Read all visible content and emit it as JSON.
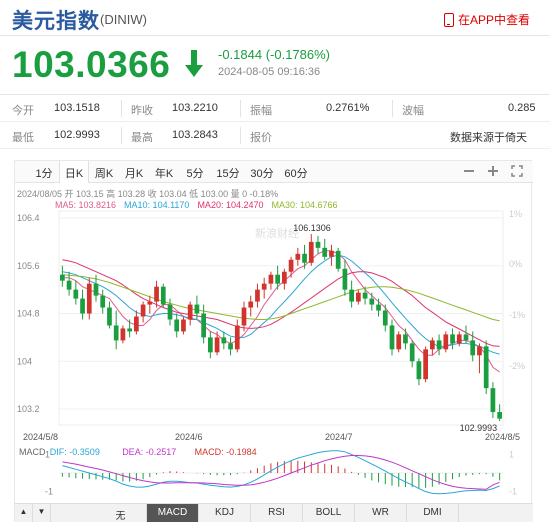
{
  "header": {
    "title": "美元指数",
    "code": "(DINIW)",
    "app_link": "在APP中查看"
  },
  "quote": {
    "price": "103.0366",
    "change": "-0.1844 (-0.1786%)",
    "timestamp": "2024-08-05 09:16:36"
  },
  "stats": {
    "row1": [
      {
        "label": "今开",
        "value": "103.1518"
      },
      {
        "label": "昨收",
        "value": "103.2210"
      },
      {
        "label": "振幅",
        "value": "0.2761%"
      },
      {
        "label": "波幅",
        "value": "0.285"
      }
    ],
    "row2": [
      {
        "label": "最低",
        "value": "102.9993"
      },
      {
        "label": "最高",
        "value": "103.2843"
      },
      {
        "label": "报价",
        "value": "数据来源于倚天"
      }
    ]
  },
  "tabs": [
    "1分",
    "日K",
    "周K",
    "月K",
    "年K",
    "5分",
    "15分",
    "30分",
    "60分"
  ],
  "active_tab": "日K",
  "bottom_tabs": [
    "无",
    "MACD",
    "KDJ",
    "RSI",
    "BOLL",
    "WR",
    "DMI"
  ],
  "active_bottom": "MACD",
  "ohlc_info": "2024/08/05  开 103.15  高 103.28  收 103.04  低 103.00  量 0  -0.18%",
  "ma_info": [
    {
      "text": "MA5: 103.8216",
      "color": "#e15a8c"
    },
    {
      "text": "MA10: 104.1170",
      "color": "#2aa6d8"
    },
    {
      "text": "MA20: 104.2470",
      "color": "#e0316a"
    },
    {
      "text": "MA30: 104.6766",
      "color": "#8fb82a"
    }
  ],
  "macd_info": [
    {
      "text": "MACD",
      "color": "#666"
    },
    {
      "text": "DIF: -0.3509",
      "color": "#2aa6d8"
    },
    {
      "text": "DEA: -0.2517",
      "color": "#c236c8"
    },
    {
      "text": "MACD: -0.1984",
      "color": "#d0342c"
    }
  ],
  "colors": {
    "up": "#d0342c",
    "down": "#1a9e3f",
    "accent": "#2a5aa0"
  },
  "chart_data": {
    "type": "candlestick",
    "y_ticks": [
      "106.4",
      "105.6",
      "104.8",
      "104",
      "103.2"
    ],
    "x_labels": [
      "2024/5/8",
      "2024/6",
      "2024/7",
      "2024/8/5"
    ],
    "right_ticks": [
      "1%",
      "0%",
      "-1%",
      "-2%"
    ],
    "macd_ticks": [
      "1",
      "-1"
    ],
    "high_label": "106.1306",
    "low_label": "102.9993",
    "watermark": "新浪财经",
    "ylim": [
      103.0,
      106.45
    ],
    "candles": [
      [
        105.45,
        105.6,
        105.25,
        105.35
      ],
      [
        105.35,
        105.5,
        105.1,
        105.2
      ],
      [
        105.2,
        105.35,
        104.95,
        105.05
      ],
      [
        105.05,
        105.2,
        104.7,
        104.8
      ],
      [
        104.8,
        105.4,
        104.7,
        105.3
      ],
      [
        105.3,
        105.45,
        105.0,
        105.1
      ],
      [
        105.1,
        105.2,
        104.8,
        104.9
      ],
      [
        104.9,
        105.0,
        104.55,
        104.6
      ],
      [
        104.6,
        104.85,
        104.2,
        104.35
      ],
      [
        104.35,
        104.6,
        104.3,
        104.55
      ],
      [
        104.55,
        104.7,
        104.4,
        104.5
      ],
      [
        104.5,
        104.85,
        104.45,
        104.75
      ],
      [
        104.75,
        105.0,
        104.65,
        104.95
      ],
      [
        104.95,
        105.1,
        104.8,
        105.0
      ],
      [
        105.0,
        105.35,
        104.9,
        105.25
      ],
      [
        105.25,
        105.3,
        104.9,
        104.95
      ],
      [
        104.95,
        105.05,
        104.6,
        104.7
      ],
      [
        104.7,
        104.8,
        104.4,
        104.5
      ],
      [
        104.5,
        104.75,
        104.45,
        104.7
      ],
      [
        104.7,
        105.0,
        104.6,
        104.95
      ],
      [
        104.95,
        105.1,
        104.7,
        104.8
      ],
      [
        104.8,
        104.95,
        104.3,
        104.4
      ],
      [
        104.4,
        104.5,
        104.05,
        104.15
      ],
      [
        104.15,
        104.5,
        104.1,
        104.4
      ],
      [
        104.4,
        104.5,
        104.2,
        104.3
      ],
      [
        104.3,
        104.4,
        104.1,
        104.2
      ],
      [
        104.2,
        104.7,
        104.15,
        104.6
      ],
      [
        104.6,
        105.0,
        104.5,
        104.9
      ],
      [
        104.9,
        105.1,
        104.75,
        105.0
      ],
      [
        105.0,
        105.3,
        104.9,
        105.2
      ],
      [
        105.2,
        105.4,
        105.05,
        105.3
      ],
      [
        105.3,
        105.5,
        105.2,
        105.45
      ],
      [
        105.45,
        105.6,
        105.2,
        105.3
      ],
      [
        105.3,
        105.55,
        105.2,
        105.5
      ],
      [
        105.5,
        105.75,
        105.4,
        105.7
      ],
      [
        105.7,
        105.9,
        105.6,
        105.8
      ],
      [
        105.8,
        105.95,
        105.55,
        105.65
      ],
      [
        105.65,
        106.13,
        105.6,
        106.0
      ],
      [
        106.0,
        106.1,
        105.8,
        105.9
      ],
      [
        105.9,
        106.05,
        105.7,
        105.75
      ],
      [
        105.75,
        105.95,
        105.6,
        105.85
      ],
      [
        105.85,
        105.9,
        105.5,
        105.55
      ],
      [
        105.55,
        105.7,
        105.1,
        105.2
      ],
      [
        105.2,
        105.35,
        104.9,
        105.0
      ],
      [
        105.0,
        105.2,
        104.95,
        105.15
      ],
      [
        105.15,
        105.25,
        104.95,
        105.05
      ],
      [
        105.05,
        105.15,
        104.85,
        104.95
      ],
      [
        104.95,
        105.05,
        104.75,
        104.85
      ],
      [
        104.85,
        104.95,
        104.5,
        104.6
      ],
      [
        104.6,
        104.7,
        104.1,
        104.2
      ],
      [
        104.2,
        104.5,
        104.15,
        104.45
      ],
      [
        104.45,
        104.55,
        104.2,
        104.3
      ],
      [
        104.3,
        104.35,
        103.9,
        104.0
      ],
      [
        104.0,
        104.05,
        103.6,
        103.7
      ],
      [
        103.7,
        104.25,
        103.65,
        104.2
      ],
      [
        104.2,
        104.4,
        104.1,
        104.35
      ],
      [
        104.35,
        104.45,
        104.1,
        104.2
      ],
      [
        104.2,
        104.5,
        104.15,
        104.45
      ],
      [
        104.45,
        104.55,
        104.2,
        104.3
      ],
      [
        104.3,
        104.5,
        104.25,
        104.45
      ],
      [
        104.45,
        104.6,
        104.3,
        104.35
      ],
      [
        104.35,
        104.5,
        104.0,
        104.1
      ],
      [
        104.1,
        104.3,
        103.8,
        104.25
      ],
      [
        104.25,
        104.35,
        103.45,
        103.55
      ],
      [
        103.55,
        103.65,
        103.05,
        103.15
      ],
      [
        103.15,
        103.28,
        103.0,
        103.04
      ]
    ],
    "ma_series": [
      {
        "name": "MA5",
        "color": "#e15a8c",
        "values": [
          105.4,
          105.4,
          105.35,
          105.25,
          105.2,
          105.15,
          105.1,
          105.05,
          104.9,
          104.75,
          104.65,
          104.6,
          104.6,
          104.7,
          104.85,
          104.95,
          104.95,
          104.85,
          104.75,
          104.7,
          104.7,
          104.6,
          104.5,
          104.45,
          104.35,
          104.3,
          104.35,
          104.45,
          104.6,
          104.75,
          104.95,
          105.1,
          105.25,
          105.35,
          105.45,
          105.55,
          105.6,
          105.7,
          105.8,
          105.85,
          105.85,
          105.8,
          105.7,
          105.5,
          105.35,
          105.2,
          105.1,
          105.0,
          104.9,
          104.75,
          104.6,
          104.5,
          104.35,
          104.2,
          104.1,
          104.1,
          104.2,
          104.25,
          104.3,
          104.35,
          104.35,
          104.3,
          104.25,
          104.1,
          103.9,
          103.82
        ]
      },
      {
        "name": "MA10",
        "color": "#2aa6d8",
        "values": [
          105.5,
          105.48,
          105.45,
          105.4,
          105.35,
          105.3,
          105.25,
          105.18,
          105.1,
          105.0,
          104.9,
          104.82,
          104.78,
          104.75,
          104.78,
          104.8,
          104.8,
          104.78,
          104.75,
          104.72,
          104.7,
          104.65,
          104.6,
          104.55,
          104.48,
          104.42,
          104.4,
          104.4,
          104.45,
          104.55,
          104.65,
          104.75,
          104.88,
          105.0,
          105.12,
          105.25,
          105.38,
          105.5,
          105.6,
          105.68,
          105.75,
          105.78,
          105.75,
          105.68,
          105.58,
          105.48,
          105.38,
          105.25,
          105.12,
          104.98,
          104.85,
          104.72,
          104.6,
          104.48,
          104.38,
          104.3,
          104.25,
          104.25,
          104.28,
          104.3,
          104.3,
          104.28,
          104.25,
          104.2,
          104.15,
          104.12
        ]
      },
      {
        "name": "MA20",
        "color": "#e0316a",
        "values": [
          105.7,
          105.68,
          105.65,
          105.6,
          105.55,
          105.5,
          105.45,
          105.4,
          105.35,
          105.28,
          105.2,
          105.12,
          105.05,
          105.0,
          104.95,
          104.9,
          104.86,
          104.82,
          104.8,
          104.78,
          104.76,
          104.74,
          104.72,
          104.7,
          104.66,
          104.62,
          104.58,
          104.56,
          104.55,
          104.56,
          104.58,
          104.62,
          104.68,
          104.75,
          104.82,
          104.9,
          104.98,
          105.06,
          105.14,
          105.22,
          105.3,
          105.38,
          105.44,
          105.48,
          105.5,
          105.5,
          105.48,
          105.44,
          105.4,
          105.34,
          105.26,
          105.18,
          105.1,
          105.0,
          104.9,
          104.82,
          104.74,
          104.66,
          104.6,
          104.54,
          104.48,
          104.42,
          104.36,
          104.3,
          104.26,
          104.25
        ]
      },
      {
        "name": "MA30",
        "color": "#8fb82a",
        "values": [
          105.45,
          105.44,
          105.43,
          105.42,
          105.4,
          105.38,
          105.35,
          105.32,
          105.28,
          105.24,
          105.2,
          105.16,
          105.12,
          105.08,
          105.04,
          105.0,
          104.97,
          104.94,
          104.91,
          104.88,
          104.86,
          104.84,
          104.82,
          104.8,
          104.78,
          104.76,
          104.74,
          104.72,
          104.71,
          104.7,
          104.7,
          104.71,
          104.73,
          104.76,
          104.8,
          104.84,
          104.88,
          104.92,
          104.96,
          105.0,
          105.04,
          105.08,
          105.12,
          105.16,
          105.2,
          105.22,
          105.24,
          105.25,
          105.25,
          105.24,
          105.22,
          105.2,
          105.17,
          105.14,
          105.1,
          105.06,
          105.02,
          104.98,
          104.94,
          104.9,
          104.86,
          104.82,
          104.78,
          104.74,
          104.7,
          104.68
        ]
      }
    ],
    "macd_dif": [
      0.2,
      0.15,
      0.1,
      0.05,
      0.0,
      -0.05,
      -0.1,
      -0.15,
      -0.22,
      -0.3,
      -0.35,
      -0.38,
      -0.38,
      -0.35,
      -0.3,
      -0.25,
      -0.22,
      -0.22,
      -0.24,
      -0.26,
      -0.27,
      -0.3,
      -0.33,
      -0.35,
      -0.37,
      -0.38,
      -0.36,
      -0.32,
      -0.25,
      -0.16,
      -0.05,
      0.06,
      0.16,
      0.25,
      0.33,
      0.4,
      0.45,
      0.5,
      0.55,
      0.58,
      0.6,
      0.6,
      0.57,
      0.5,
      0.42,
      0.33,
      0.24,
      0.15,
      0.05,
      -0.05,
      -0.15,
      -0.24,
      -0.32,
      -0.42,
      -0.5,
      -0.55,
      -0.56,
      -0.55,
      -0.53,
      -0.5,
      -0.48,
      -0.47,
      -0.46,
      -0.47,
      -0.42,
      -0.35
    ],
    "macd_dea": [
      0.3,
      0.27,
      0.24,
      0.2,
      0.16,
      0.12,
      0.08,
      0.03,
      -0.02,
      -0.07,
      -0.12,
      -0.17,
      -0.21,
      -0.24,
      -0.26,
      -0.27,
      -0.27,
      -0.26,
      -0.26,
      -0.26,
      -0.26,
      -0.27,
      -0.28,
      -0.29,
      -0.31,
      -0.32,
      -0.33,
      -0.33,
      -0.32,
      -0.29,
      -0.25,
      -0.2,
      -0.14,
      -0.07,
      0.0,
      0.07,
      0.14,
      0.21,
      0.27,
      0.33,
      0.38,
      0.42,
      0.45,
      0.47,
      0.47,
      0.46,
      0.44,
      0.4,
      0.35,
      0.29,
      0.22,
      0.14,
      0.06,
      -0.02,
      -0.1,
      -0.18,
      -0.25,
      -0.31,
      -0.36,
      -0.39,
      -0.41,
      -0.42,
      -0.43,
      -0.44,
      -0.32,
      -0.25
    ],
    "macd_hist": [
      -0.1,
      -0.12,
      -0.14,
      -0.15,
      -0.16,
      -0.17,
      -0.18,
      -0.18,
      -0.2,
      -0.23,
      -0.23,
      -0.21,
      -0.17,
      -0.11,
      -0.04,
      0.02,
      0.05,
      0.04,
      0.02,
      0.0,
      -0.01,
      -0.03,
      -0.05,
      -0.06,
      -0.06,
      -0.06,
      -0.03,
      0.01,
      0.07,
      0.13,
      0.2,
      0.26,
      0.3,
      0.32,
      0.33,
      0.33,
      0.31,
      0.29,
      0.28,
      0.25,
      0.22,
      0.18,
      0.12,
      0.03,
      -0.05,
      -0.13,
      -0.2,
      -0.25,
      -0.3,
      -0.34,
      -0.37,
      -0.38,
      -0.38,
      -0.4,
      -0.4,
      -0.37,
      -0.31,
      -0.24,
      -0.17,
      -0.11,
      -0.07,
      -0.05,
      -0.03,
      -0.03,
      -0.1,
      -0.2
    ]
  }
}
